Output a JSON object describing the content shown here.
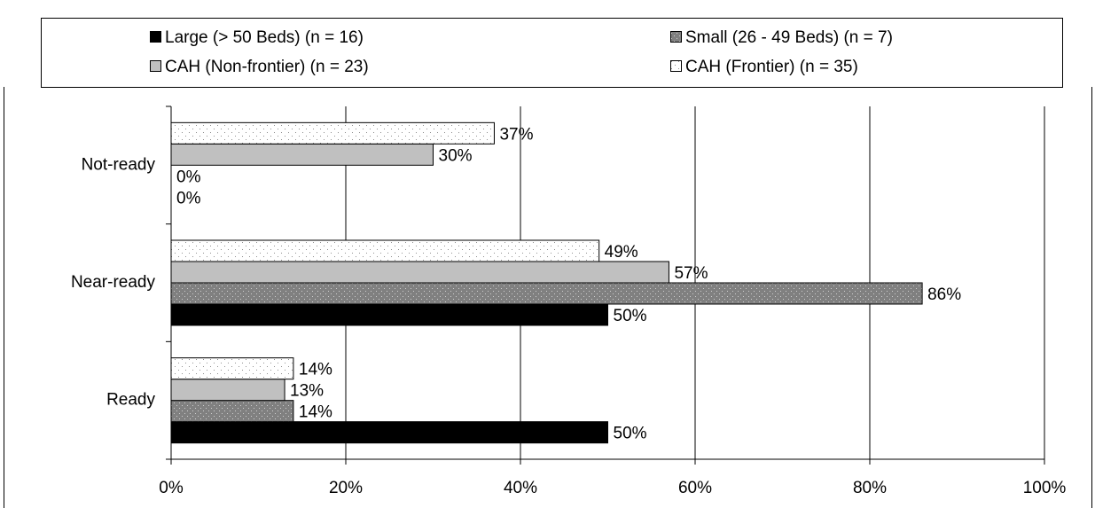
{
  "chart_data": {
    "type": "hbar",
    "categories": [
      "Not-ready",
      "Near-ready",
      "Ready"
    ],
    "series": [
      {
        "name": "Large (> 50 Beds) (n = 16)",
        "color": "#000000",
        "values": [
          0,
          50,
          50
        ],
        "value_labels": [
          "0%",
          "50%",
          "50%"
        ]
      },
      {
        "name": "Small (26 - 49 Beds) (n = 7)",
        "color": "#808080",
        "pattern": "dots",
        "values": [
          0,
          86,
          14
        ],
        "value_labels": [
          "0%",
          "86%",
          "14%"
        ]
      },
      {
        "name": "CAH (Non-frontier) (n = 23)",
        "color": "#c0c0c0",
        "values": [
          30,
          57,
          13
        ],
        "value_labels": [
          "30%",
          "57%",
          "13%"
        ]
      },
      {
        "name": "CAH (Frontier) (n = 35)",
        "color": "#ffffff",
        "pattern": "dots",
        "values": [
          37,
          49,
          14
        ],
        "value_labels": [
          "37%",
          "49%",
          "14%"
        ]
      }
    ],
    "xlim": [
      0,
      100
    ],
    "xticks": [
      {
        "value": 0,
        "label": "0%"
      },
      {
        "value": 20,
        "label": "20%"
      },
      {
        "value": 40,
        "label": "40%"
      },
      {
        "value": 60,
        "label": "60%"
      },
      {
        "value": 80,
        "label": "80%"
      },
      {
        "value": 100,
        "label": "100%"
      }
    ],
    "grid": true,
    "legend": "top"
  }
}
